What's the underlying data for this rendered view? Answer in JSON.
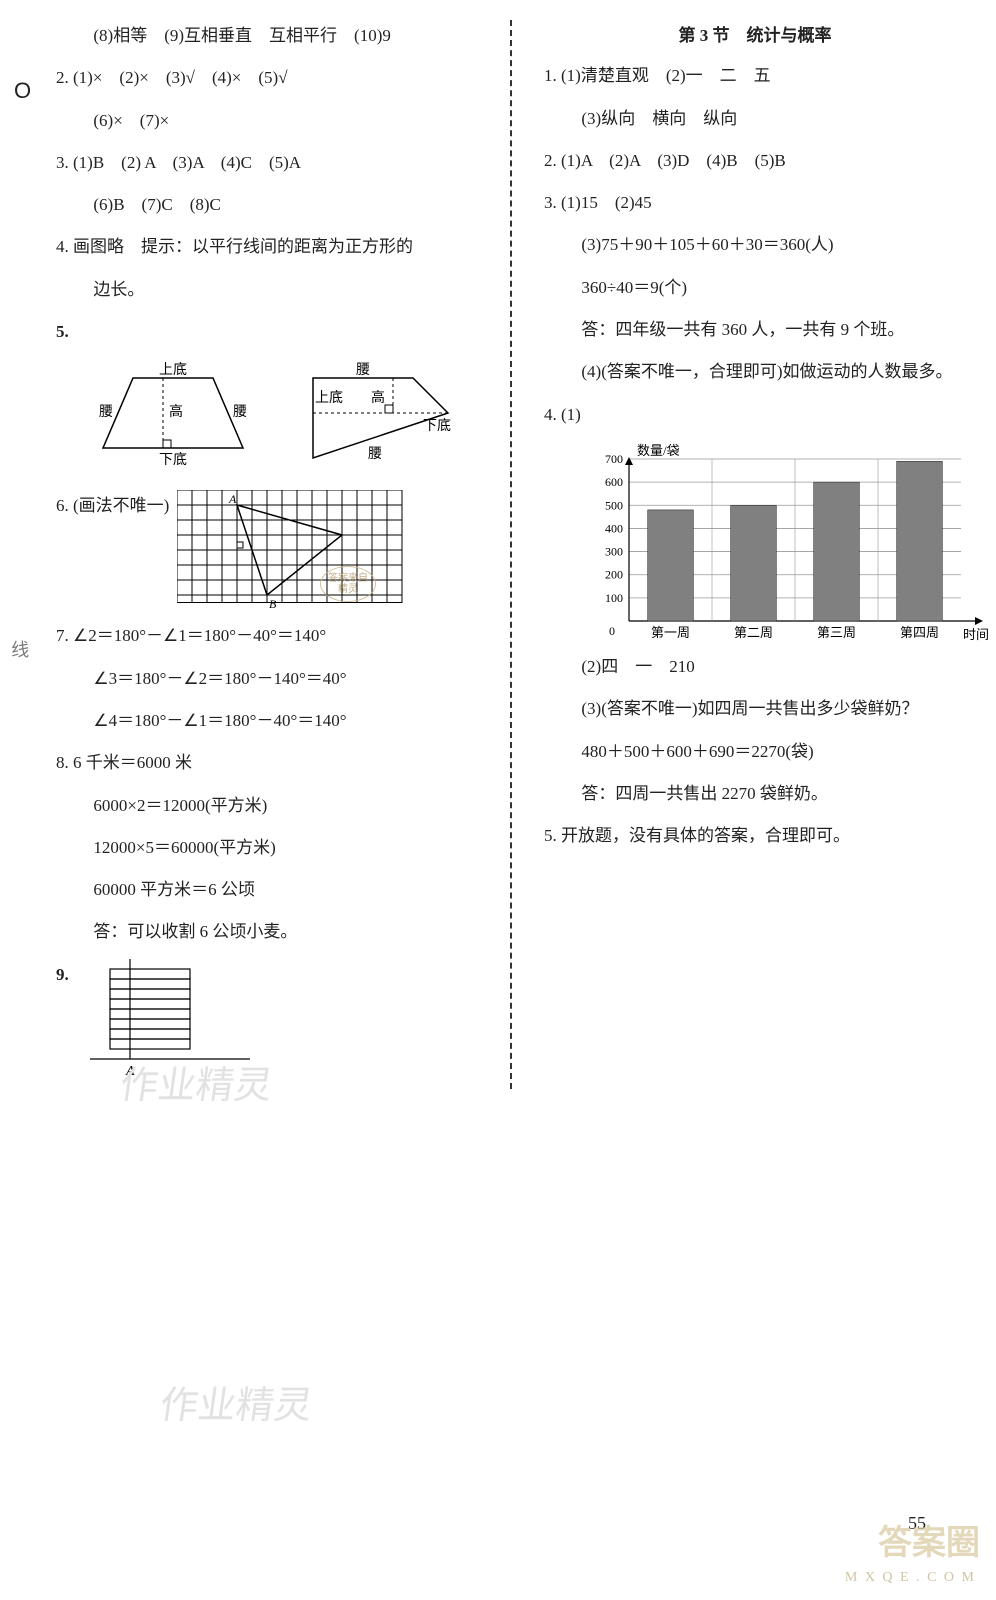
{
  "left": {
    "q1_8": "(8)相等　(9)互相垂直　互相平行　(10)9",
    "q2a": "2.  (1)×　(2)×　(3)√　(4)×　(5)√",
    "q2b": "(6)×　(7)×",
    "q3a": "3.  (1)B　(2) A　(3)A　(4)C　(5)A",
    "q3b": "(6)B　(7)C　(8)C",
    "q4a": "4.  画图略　提示：以平行线间的距离为正方形的",
    "q4b": "边长。",
    "q5": "5.",
    "q6": "6.  (画法不唯一)",
    "q7a": "7.  ∠2＝180°－∠1＝180°－40°＝140°",
    "q7b": "∠3＝180°－∠2＝180°－140°＝40°",
    "q7c": "∠4＝180°－∠1＝180°－40°＝140°",
    "q8a": "8.  6 千米＝6000 米",
    "q8b": "6000×2＝12000(平方米)",
    "q8c": "12000×5＝60000(平方米)",
    "q8d": "60000 平方米＝6 公顷",
    "q8e": "答：可以收割 6 公顷小麦。",
    "q9": "9.",
    "trapezoid1": {
      "top": "上底",
      "bottom": "下底",
      "left": "腰",
      "right": "腰",
      "height": "高"
    },
    "trapezoid2": {
      "top": "腰",
      "bottom": "腰",
      "left": "上底",
      "right": "下底",
      "height": "高"
    },
    "grid6": {
      "A": "A",
      "B": "B"
    }
  },
  "right": {
    "section": "第 3 节　统计与概率",
    "q1a": "1.  (1)清楚直观　(2)一　二　五",
    "q1b": "(3)纵向　横向　纵向",
    "q2": "2.  (1)A　(2)A　(3)D　(4)B　(5)B",
    "q3a": "3.  (1)15　(2)45",
    "q3b": "(3)75＋90＋105＋60＋30＝360(人)",
    "q3c": "360÷40＝9(个)",
    "q3d": "答：四年级一共有 360 人，一共有 9 个班。",
    "q3e": "(4)(答案不唯一，合理即可)如做运动的人数最多。",
    "q4": "4.  (1)",
    "chart": {
      "type": "bar",
      "ylabel": "数量/袋",
      "xlabel": "时间",
      "categories": [
        "第一周",
        "第二周",
        "第三周",
        "第四周"
      ],
      "values": [
        480,
        500,
        600,
        690
      ],
      "yticks": [
        100,
        200,
        300,
        400,
        500,
        600,
        700
      ],
      "ylim": [
        0,
        700
      ],
      "bar_color": "#808080",
      "grid_color": "#999999",
      "bar_width": 0.55
    },
    "q4b": "(2)四　一　210",
    "q4c": "(3)(答案不唯一)如四周一共售出多少袋鲜奶？",
    "q4d": "480＋500＋600＋690＝2270(袋)",
    "q4e": "答：四周一共售出 2270 袋鲜奶。",
    "q5": "5.  开放题，没有具体的答案，合理即可。"
  },
  "misc": {
    "pageNum": "55",
    "watermark": "作业精灵",
    "corner": "答案圈",
    "cornerSub": "M X Q E . C O M",
    "stamp": "答案来自\n精灵",
    "edge": "线"
  }
}
